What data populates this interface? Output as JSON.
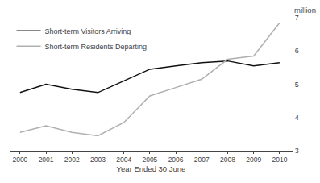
{
  "chart_data": {
    "type": "line",
    "x": [
      2000,
      2001,
      2002,
      2003,
      2004,
      2005,
      2006,
      2007,
      2008,
      2009,
      2010
    ],
    "series": [
      {
        "name": "Short-term Visitors Arriving",
        "color": "#111111",
        "values": [
          4.75,
          5.0,
          4.85,
          4.75,
          5.1,
          5.45,
          5.55,
          5.65,
          5.7,
          5.55,
          5.65
        ]
      },
      {
        "name": "Short-term Residents Departing",
        "color": "#b0b0b0",
        "values": [
          3.55,
          3.75,
          3.55,
          3.45,
          3.85,
          4.65,
          4.9,
          5.15,
          5.75,
          5.85,
          6.85
        ]
      }
    ],
    "xlabel": "Year Ended 30 June",
    "ylabel": "million",
    "xlim": [
      1999.6,
      2010.5
    ],
    "xticks": [
      2000,
      2001,
      2002,
      2003,
      2004,
      2005,
      2006,
      2007,
      2008,
      2009,
      2010
    ],
    "ylim": [
      3,
      7
    ],
    "yticks": [
      3,
      4,
      5,
      6,
      7
    ],
    "grid": false,
    "legend": "upper left"
  }
}
